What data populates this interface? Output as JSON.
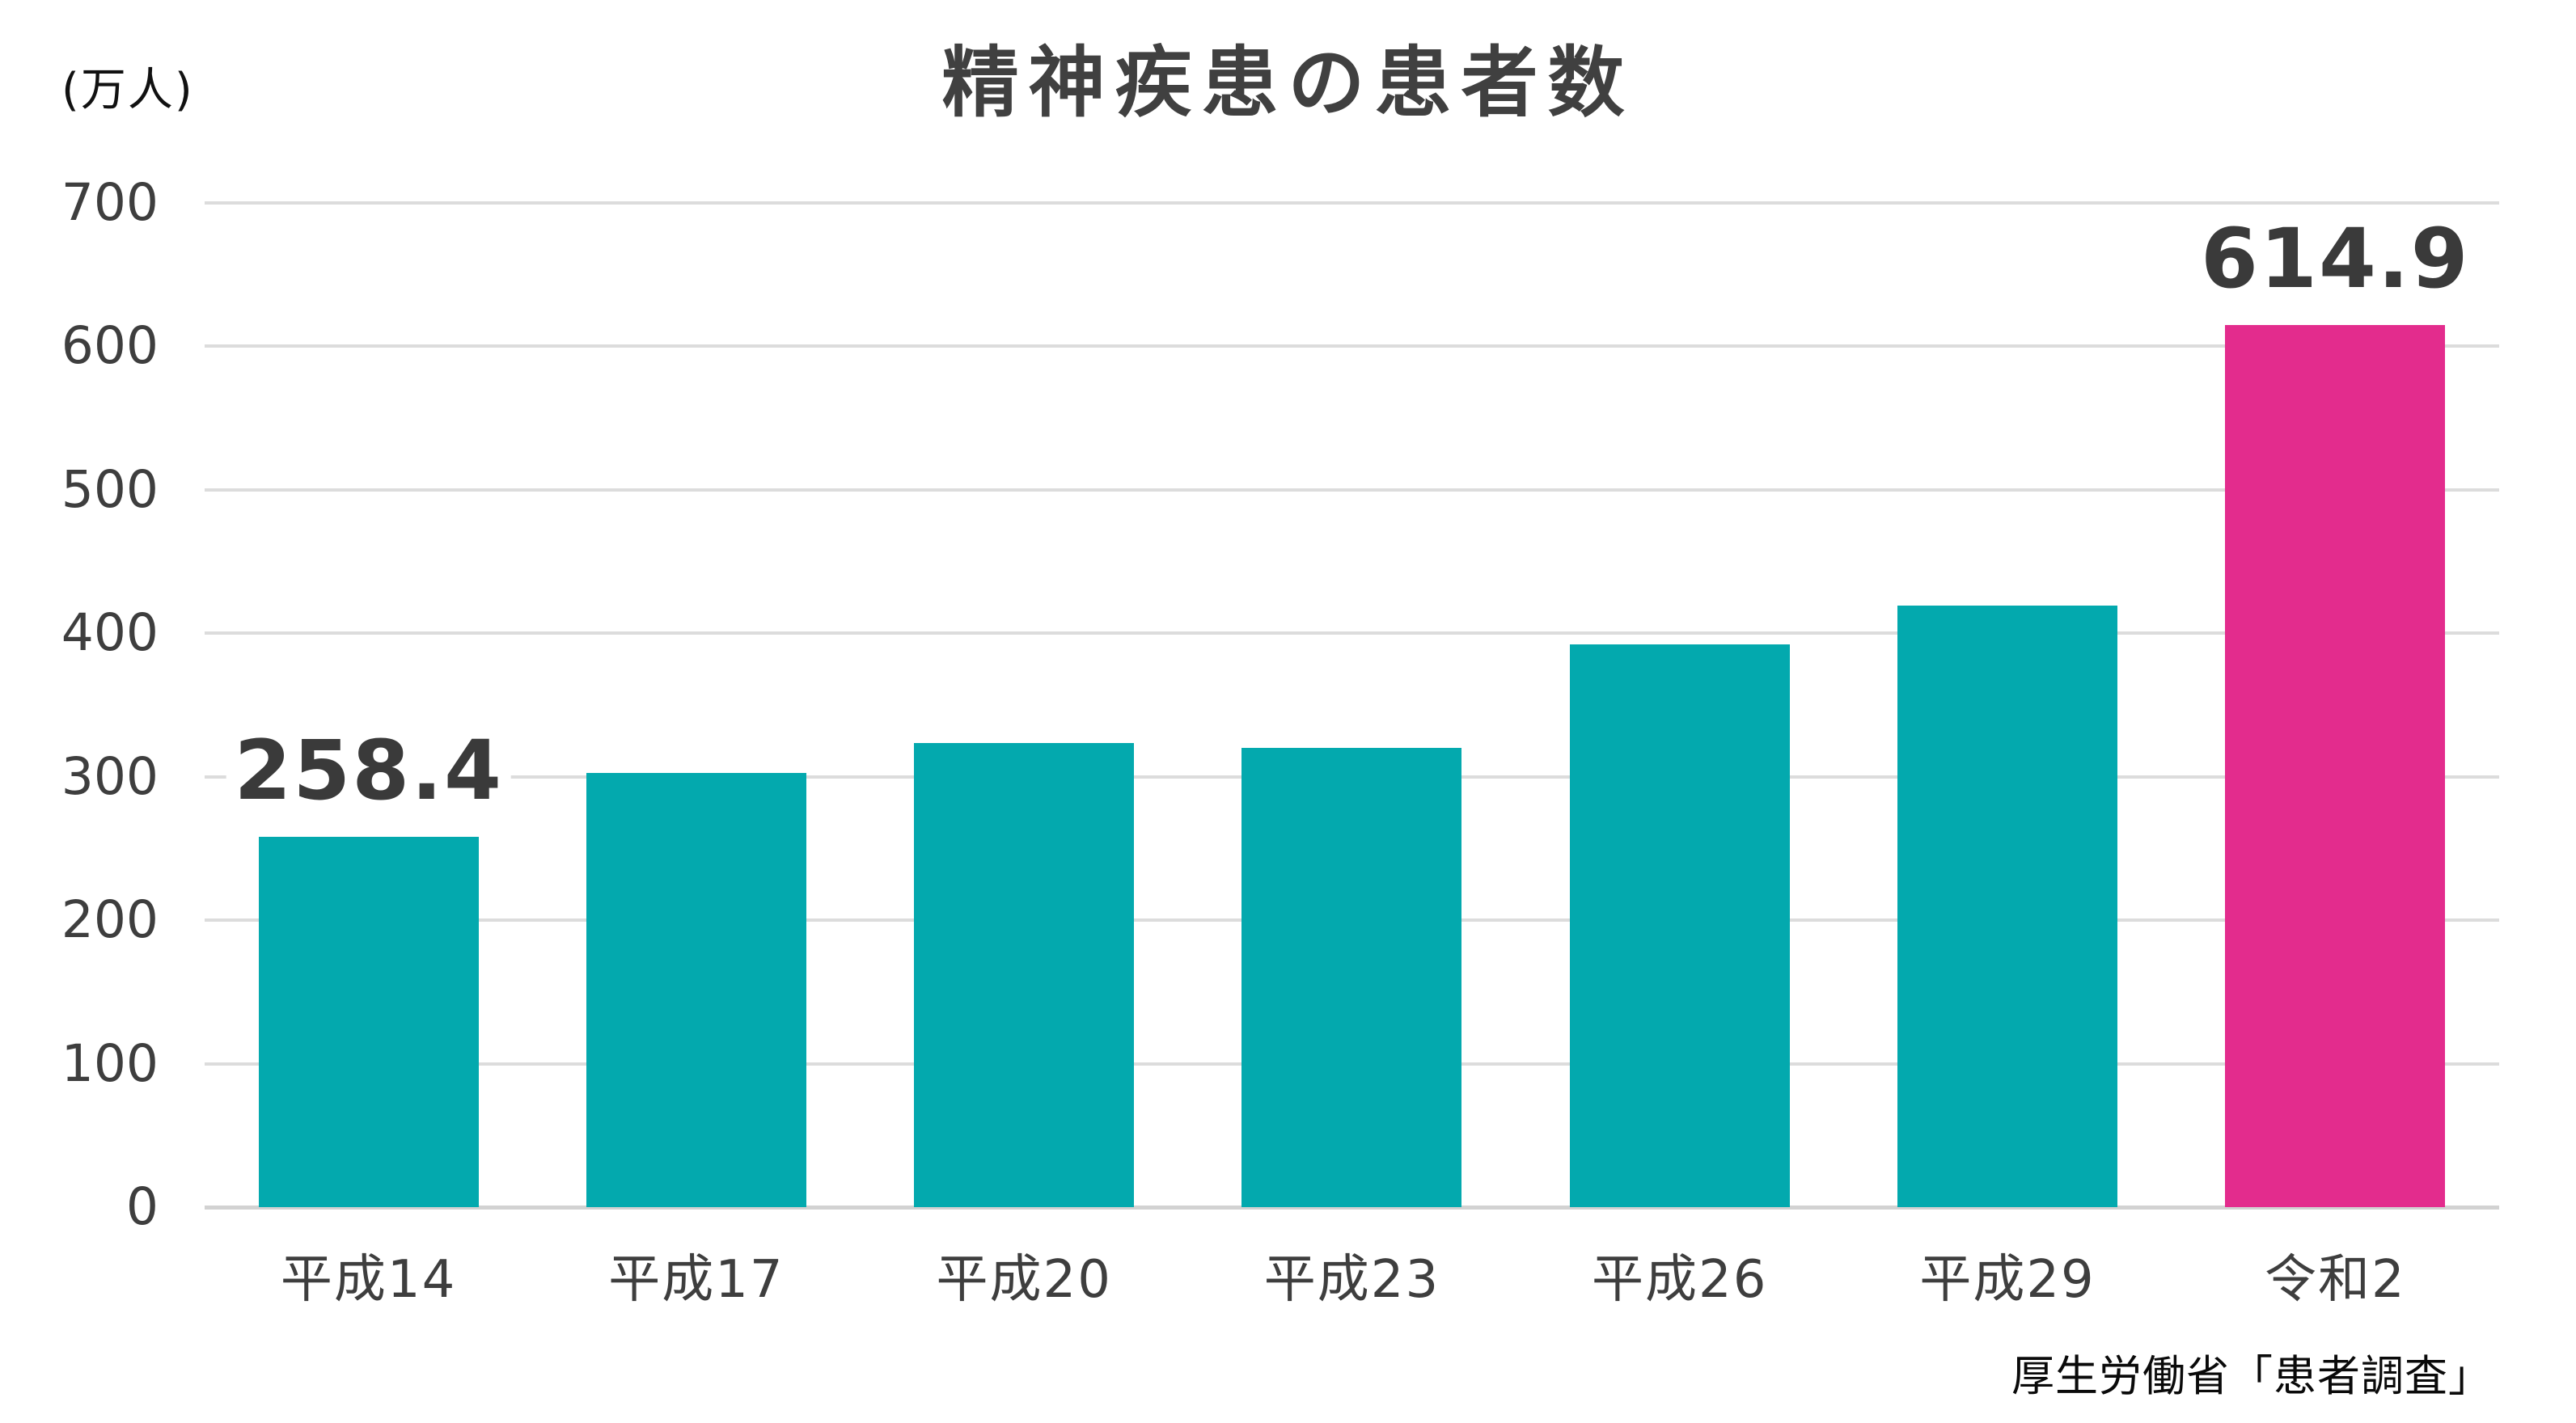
{
  "title": "精神疾患の患者数",
  "unit_label": "(万人)",
  "source": "厚生労働省「患者調査」",
  "colors": {
    "bar_default": "#03A9AE",
    "bar_highlight": "#E32C8D",
    "gridline": "#DCDCDC",
    "axis_line": "#D2D2D2",
    "tick_text": "#3E3E3E",
    "title_text": "#404040",
    "value_label_text": "#3A3A3A"
  },
  "chart_data": {
    "type": "bar",
    "categories": [
      "平成14",
      "平成17",
      "平成20",
      "平成23",
      "平成26",
      "平成29",
      "令和2"
    ],
    "values": [
      258.4,
      302.8,
      323.3,
      320.1,
      392.4,
      419.3,
      614.9
    ],
    "highlight_index": 6,
    "data_labels": [
      {
        "index": 0,
        "text": "258.4"
      },
      {
        "index": 6,
        "text": "614.9"
      }
    ],
    "title": "精神疾患の患者数",
    "xlabel": "",
    "ylabel": "(万人)",
    "ylim": [
      0,
      700
    ],
    "yticks": [
      "0",
      "100",
      "200",
      "300",
      "400",
      "500",
      "600",
      "700"
    ],
    "ytick_step": 100,
    "grid": true,
    "legend": false
  }
}
